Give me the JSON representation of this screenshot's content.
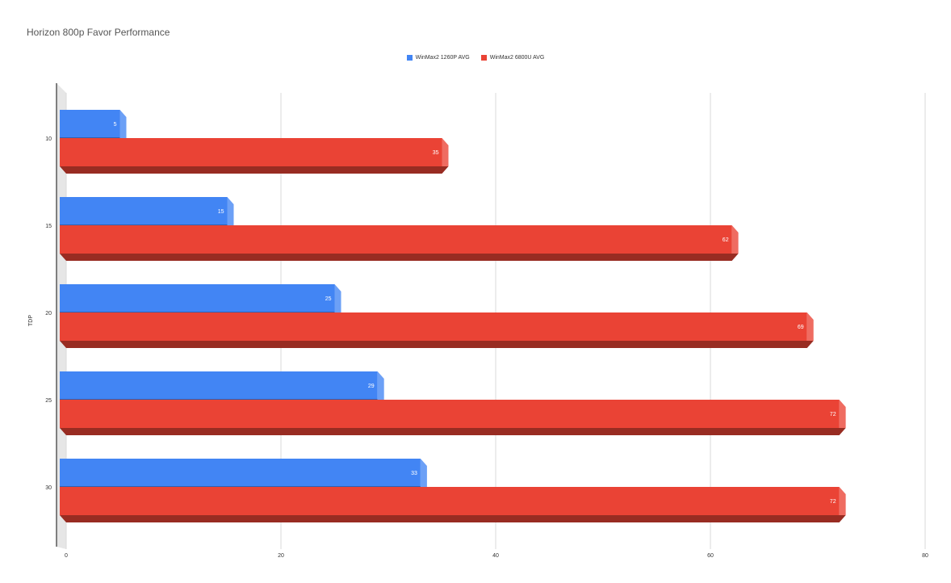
{
  "chart_data": {
    "type": "bar",
    "orientation": "horizontal",
    "style": "3d",
    "title": "Horizon 800p Favor Performance",
    "ylabel": "TDP",
    "xlabel": "",
    "categories": [
      "10",
      "15",
      "20",
      "25",
      "30"
    ],
    "series": [
      {
        "name": "WinMax2 1260P AVG",
        "color": "#4285f4",
        "values": [
          5,
          15,
          25,
          29,
          33
        ]
      },
      {
        "name": "WinMax2 6800U AVG",
        "color": "#ea4335",
        "values": [
          35,
          62,
          69,
          72,
          72
        ]
      }
    ],
    "xlim": [
      0,
      80
    ],
    "xticks": [
      "0",
      "20",
      "40",
      "60",
      "80"
    ],
    "grid": true,
    "legend_position": "top"
  }
}
